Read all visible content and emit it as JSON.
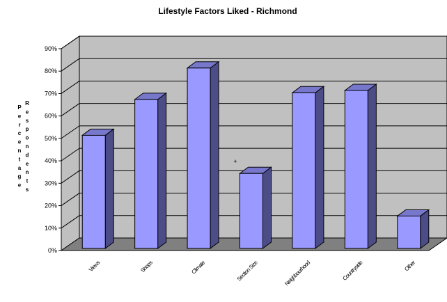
{
  "chart_data": {
    "type": "bar",
    "title": "Lifestyle Factors Liked - Richmond",
    "ylabel_line1": "Percentage",
    "ylabel_line2": "Respondents",
    "categories": [
      "Views",
      "Shops",
      "Climate",
      "Section Size",
      "Neighbourhood",
      "Countryside",
      "Other"
    ],
    "values": [
      52,
      68,
      82,
      35,
      71,
      72,
      16
    ],
    "ylim": [
      0,
      90
    ],
    "yticks": [
      "0%",
      "10%",
      "20%",
      "30%",
      "40%",
      "50%",
      "60%",
      "70%",
      "80%",
      "90%"
    ],
    "grid": true,
    "legend": "none",
    "colors": {
      "bar_front": "#9999ff",
      "bar_side": "#4c4c86",
      "bar_top": "#7777cc",
      "wall": "#c0c0c0",
      "floor": "#808080"
    }
  }
}
